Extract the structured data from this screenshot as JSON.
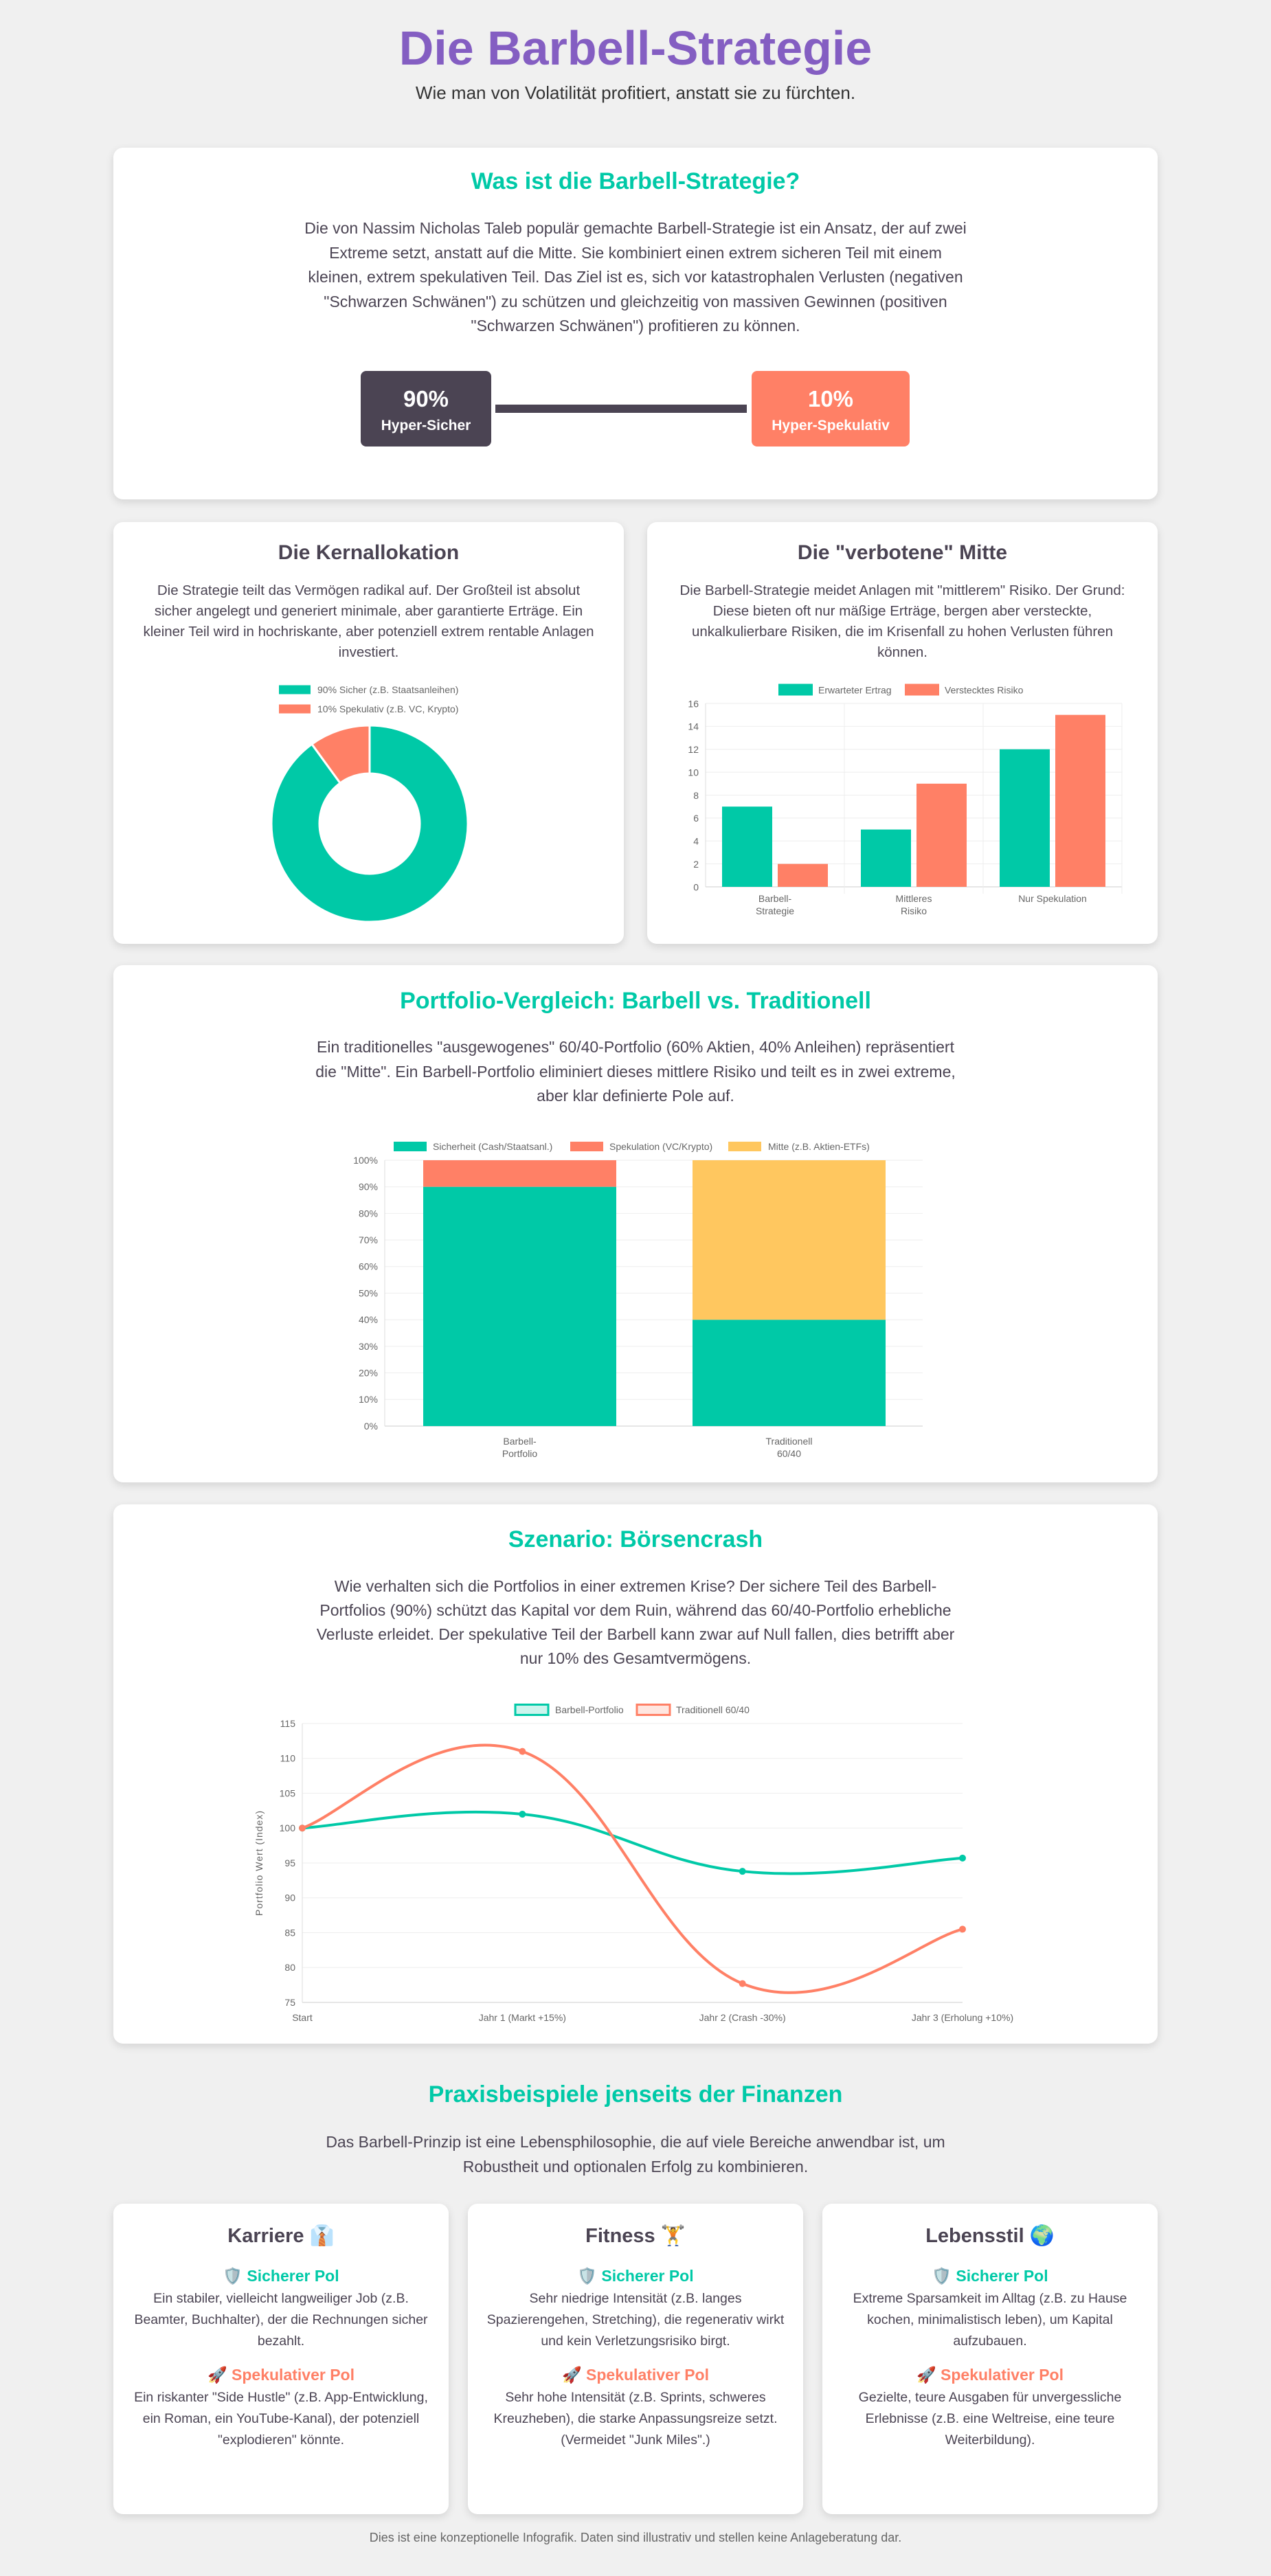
{
  "header": {
    "title": "Die Barbell-Strategie",
    "subtitle": "Wie man von Volatilität profitiert, anstatt sie zu fürchten."
  },
  "intro": {
    "title": "Was ist die Barbell-Strategie?",
    "text": "Die von Nassim Nicholas Taleb populär gemachte Barbell-Strategie ist ein Ansatz, der auf zwei Extreme setzt, anstatt auf die Mitte. Sie kombiniert einen extrem sicheren Teil mit einem kleinen, extrem spekulativen Teil. Das Ziel ist es, sich vor katastrophalen Verlusten (negativen \"Schwarzen Schwänen\") zu schützen und gleichzeitig von massiven Gewinnen (positiven \"Schwarzen Schwänen\") profitieren zu können.",
    "safe": {
      "pct": "90%",
      "label": "Hyper-Sicher"
    },
    "spec": {
      "pct": "10%",
      "label": "Hyper-Spekulativ"
    }
  },
  "colors": {
    "green": "#00C9A7",
    "coral": "#FF8066",
    "purple": "#845EC2",
    "dark": "#4B4453",
    "yellow": "#FFC75F"
  },
  "allocation": {
    "title": "Die Kernallokation",
    "text": "Die Strategie teilt das Vermögen radikal auf. Der Großteil ist absolut sicher angelegt und generiert minimale, aber garantierte Erträge. Ein kleiner Teil wird in hochriskante, aber potenziell extrem rentable Anlagen investiert."
  },
  "middle": {
    "title": "Die \"verbotene\" Mitte",
    "text": "Die Barbell-Strategie meidet Anlagen mit \"mittlerem\" Risiko. Der Grund: Diese bieten oft nur mäßige Erträge, bergen aber versteckte, unkalkulierbare Risiken, die im Krisenfall zu hohen Verlusten führen können."
  },
  "comparison": {
    "title": "Portfolio-Vergleich: Barbell vs. Traditionell",
    "text": "Ein traditionelles \"ausgewogenes\" 60/40-Portfolio (60% Aktien, 40% Anleihen) repräsentiert die \"Mitte\". Ein Barbell-Portfolio eliminiert dieses mittlere Risiko und teilt es in zwei extreme, aber klar definierte Pole auf."
  },
  "crash": {
    "title": "Szenario: Börsencrash",
    "text": "Wie verhalten sich die Portfolios in einer extremen Krise? Der sichere Teil des Barbell-Portfolios (90%) schützt das Kapital vor dem Ruin, während das 60/40-Portfolio erhebliche Verluste erleidet. Der spekulative Teil der Barbell kann zwar auf Null fallen, dies betrifft aber nur 10% des Gesamtvermögens."
  },
  "chart_data": [
    {
      "type": "pie",
      "donut": true,
      "categories": [
        "90% Sicher (z.B. Staatsanleihen)",
        "10% Spekulativ (z.B. VC, Krypto)"
      ],
      "values": [
        90,
        10
      ],
      "colors": [
        "#00C9A7",
        "#FF8066"
      ],
      "legend": "top"
    },
    {
      "type": "bar",
      "categories": [
        [
          "Barbell-",
          "Strategie"
        ],
        [
          "Mittleres",
          "Risiko"
        ],
        [
          "Nur Spekulation"
        ]
      ],
      "series": [
        {
          "name": "Erwarteter Ertrag",
          "values": [
            7,
            5,
            12
          ],
          "color": "#00C9A7"
        },
        {
          "name": "Verstecktes Risiko",
          "values": [
            2,
            9,
            15
          ],
          "color": "#FF8066"
        }
      ],
      "ylim": [
        0,
        16
      ],
      "yticks": [
        0,
        2,
        4,
        6,
        8,
        10,
        12,
        14,
        16
      ],
      "grid": true,
      "legend": "top"
    },
    {
      "type": "bar",
      "stacked": true,
      "categories": [
        [
          "Barbell-",
          "Portfolio"
        ],
        [
          "Traditionell",
          "60/40"
        ]
      ],
      "series": [
        {
          "name": "Sicherheit (Cash/Staatsanl.)",
          "values": [
            90,
            40
          ],
          "color": "#00C9A7"
        },
        {
          "name": "Spekulation (VC/Krypto)",
          "values": [
            10,
            0
          ],
          "color": "#FF8066"
        },
        {
          "name": "Mitte (z.B. Aktien-ETFs)",
          "values": [
            0,
            60
          ],
          "color": "#FFC75F"
        }
      ],
      "ylim": [
        0,
        100
      ],
      "yticks": [
        "0%",
        "10%",
        "20%",
        "30%",
        "40%",
        "50%",
        "60%",
        "70%",
        "80%",
        "90%",
        "100%"
      ],
      "grid": true,
      "legend": "top"
    },
    {
      "type": "line",
      "categories": [
        "Start",
        "Jahr 1 (Markt +15%)",
        "Jahr 2 (Crash -30%)",
        "Jahr 3 (Erholung +10%)"
      ],
      "series": [
        {
          "name": "Barbell-Portfolio",
          "values": [
            100,
            102,
            93.8,
            95.7
          ],
          "color": "#00C9A7"
        },
        {
          "name": "Traditionell 60/40",
          "values": [
            100,
            111,
            77.7,
            85.5
          ],
          "color": "#FF8066"
        }
      ],
      "ylabel": "Portfolio Wert (Index)",
      "ylim": [
        75,
        115
      ],
      "yticks": [
        75,
        80,
        85,
        90,
        95,
        100,
        105,
        110,
        115
      ],
      "grid": true,
      "legend": "top"
    }
  ],
  "examples": {
    "title": "Praxisbeispiele jenseits der Finanzen",
    "text": "Das Barbell-Prinzip ist eine Lebensphilosophie, die auf viele Bereiche anwendbar ist, um Robustheit und optionalen Erfolg zu kombinieren.",
    "safe_icon": "🛡️",
    "spec_icon": "🚀",
    "items": [
      {
        "title": "Karriere 👔",
        "safe_label": "Sicherer Pol",
        "safe": "Ein stabiler, vielleicht langweiliger Job (z.B. Beamter, Buchhalter), der die Rechnungen sicher bezahlt.",
        "spec_label": "Spekulativer Pol",
        "spec": "Ein riskanter \"Side Hustle\" (z.B. App-Entwicklung, ein Roman, ein YouTube-Kanal), der potenziell \"explodieren\" könnte."
      },
      {
        "title": "Fitness 🏋️",
        "safe_label": "Sicherer Pol",
        "safe": "Sehr niedrige Intensität (z.B. langes Spazierengehen, Stretching), die regenerativ wirkt und kein Verletzungsrisiko birgt.",
        "spec_label": "Spekulativer Pol",
        "spec": "Sehr hohe Intensität (z.B. Sprints, schweres Kreuzheben), die starke Anpassungsreize setzt. (Vermeidet \"Junk Miles\".)"
      },
      {
        "title": "Lebensstil 🌍",
        "safe_label": "Sicherer Pol",
        "safe": "Extreme Sparsamkeit im Alltag (z.B. zu Hause kochen, minimalistisch leben), um Kapital aufzubauen.",
        "spec_label": "Spekulativer Pol",
        "spec": "Gezielte, teure Ausgaben für unvergessliche Erlebnisse (z.B. eine Weltreise, eine teure Weiterbildung)."
      }
    ]
  },
  "footer": "Dies ist eine konzeptionelle Infografik. Daten sind illustrativ und stellen keine Anlageberatung dar."
}
